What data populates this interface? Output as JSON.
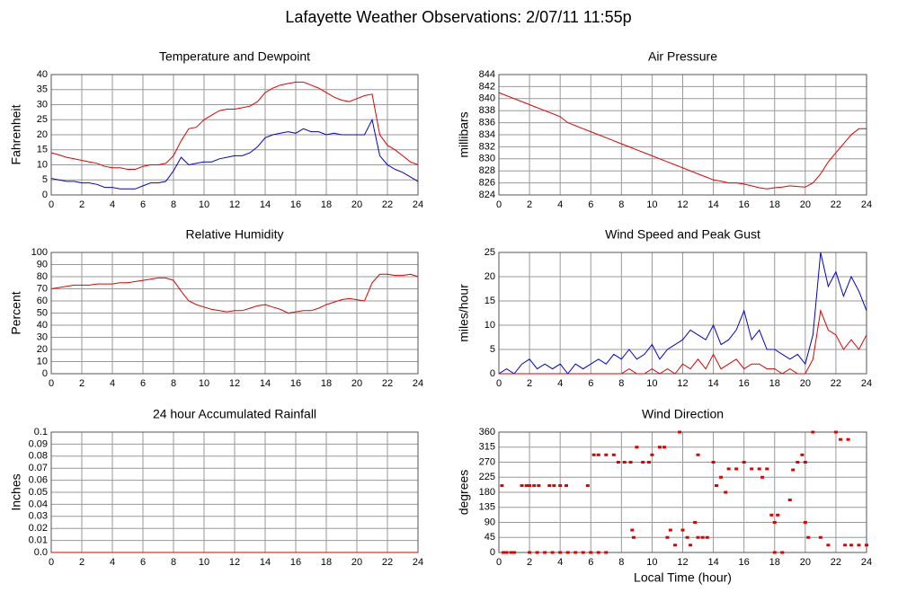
{
  "title": "Lafayette Weather Observations: 2/07/11 11:55p",
  "chart_data": [
    {
      "type": "line",
      "title": "Temperature and Dewpoint",
      "ylabel": "Fahrenheit",
      "x": [
        0,
        0.5,
        1,
        1.5,
        2,
        2.5,
        3,
        3.5,
        4,
        4.5,
        5,
        5.5,
        6,
        6.5,
        7,
        7.5,
        8,
        8.5,
        9,
        9.5,
        10,
        10.5,
        11,
        11.5,
        12,
        12.5,
        13,
        13.5,
        14,
        14.5,
        15,
        15.5,
        16,
        16.5,
        17,
        17.5,
        18,
        18.5,
        19,
        19.5,
        20,
        20.5,
        21,
        21.5,
        22,
        22.5,
        23,
        23.5,
        24
      ],
      "series": [
        {
          "color": "#e00000",
          "values": [
            14,
            13.3,
            12.5,
            12,
            11.5,
            11,
            10.5,
            9.5,
            9,
            9,
            8.5,
            8.5,
            9.5,
            10,
            10,
            10.5,
            13,
            18,
            22,
            22.5,
            25,
            26.5,
            28,
            28.5,
            28.5,
            29,
            29.5,
            31,
            34,
            35.5,
            36.5,
            37,
            37.5,
            37.5,
            36.5,
            35.5,
            34,
            32.5,
            31.5,
            31,
            32,
            33,
            33.5,
            20,
            16.5,
            15,
            13,
            11,
            10
          ]
        },
        {
          "color": "#0000d0",
          "values": [
            5.5,
            5,
            4.5,
            4.5,
            4,
            4,
            3.5,
            2.5,
            2.5,
            2,
            2,
            2,
            3,
            4,
            4,
            4.5,
            8,
            12.5,
            10,
            10.5,
            11,
            11,
            12,
            12.5,
            13,
            13,
            14,
            16,
            19,
            20,
            20.5,
            21,
            20.5,
            22,
            21,
            21,
            20,
            20.5,
            20,
            20,
            20,
            20,
            25,
            13,
            10,
            8.5,
            7.5,
            6,
            4.5
          ]
        }
      ],
      "xlim": [
        0,
        24
      ],
      "xticks": [
        0,
        2,
        4,
        6,
        8,
        10,
        12,
        14,
        16,
        18,
        20,
        22,
        24
      ],
      "ylim": [
        0,
        40
      ],
      "yticks": [
        0,
        5,
        10,
        15,
        20,
        25,
        30,
        35,
        40
      ],
      "grid": true
    },
    {
      "type": "line",
      "title": "Air Pressure",
      "ylabel": "millibars",
      "x": [
        0,
        0.5,
        1,
        1.5,
        2,
        2.5,
        3,
        3.5,
        4,
        4.5,
        5,
        5.5,
        6,
        6.5,
        7,
        7.5,
        8,
        8.5,
        9,
        9.5,
        10,
        10.5,
        11,
        11.5,
        12,
        12.5,
        13,
        13.5,
        14,
        14.5,
        15,
        15.5,
        16,
        16.5,
        17,
        17.5,
        18,
        18.5,
        19,
        19.5,
        20,
        20.5,
        21,
        21.5,
        22,
        22.5,
        23,
        23.5,
        24
      ],
      "series": [
        {
          "color": "#e00000",
          "values": [
            841,
            840.5,
            840,
            839.5,
            839,
            838.5,
            838,
            837.5,
            837,
            836,
            835.5,
            835,
            834.5,
            834,
            833.5,
            833,
            832.5,
            832,
            831.5,
            831,
            830.5,
            830,
            829.5,
            829,
            828.5,
            828,
            827.5,
            827,
            826.5,
            826.3,
            826,
            826,
            825.8,
            825.5,
            825.2,
            825,
            825.2,
            825.3,
            825.5,
            825.4,
            825.3,
            826,
            827.5,
            829.5,
            831,
            832.5,
            834,
            835,
            835
          ]
        }
      ],
      "xlim": [
        0,
        24
      ],
      "xticks": [
        0,
        2,
        4,
        6,
        8,
        10,
        12,
        14,
        16,
        18,
        20,
        22,
        24
      ],
      "ylim": [
        824,
        844
      ],
      "yticks": [
        824,
        826,
        828,
        830,
        832,
        834,
        836,
        838,
        840,
        842,
        844
      ],
      "grid": true
    },
    {
      "type": "line",
      "title": "Relative Humidity",
      "ylabel": "Percent",
      "x": [
        0,
        0.5,
        1,
        1.5,
        2,
        2.5,
        3,
        3.5,
        4,
        4.5,
        5,
        5.5,
        6,
        6.5,
        7,
        7.5,
        8,
        8.5,
        9,
        9.5,
        10,
        10.5,
        11,
        11.5,
        12,
        12.5,
        13,
        13.5,
        14,
        14.5,
        15,
        15.5,
        16,
        16.5,
        17,
        17.5,
        18,
        18.5,
        19,
        19.5,
        20,
        20.5,
        21,
        21.5,
        22,
        22.5,
        23,
        23.5,
        24
      ],
      "series": [
        {
          "color": "#e00000",
          "values": [
            70,
            71,
            72,
            73,
            73,
            73,
            74,
            74,
            74,
            75,
            75,
            76,
            77,
            78,
            79,
            79,
            77,
            68,
            60,
            57,
            55,
            53,
            52,
            51,
            52,
            52,
            54,
            56,
            57,
            55,
            53,
            50,
            51,
            52,
            52,
            54,
            57,
            59,
            61,
            62,
            61,
            60,
            75,
            82,
            82,
            81,
            81,
            82,
            80
          ]
        }
      ],
      "xlim": [
        0,
        24
      ],
      "xticks": [
        0,
        2,
        4,
        6,
        8,
        10,
        12,
        14,
        16,
        18,
        20,
        22,
        24
      ],
      "ylim": [
        0,
        100
      ],
      "yticks": [
        0,
        10,
        20,
        30,
        40,
        50,
        60,
        70,
        80,
        90,
        100
      ],
      "grid": true
    },
    {
      "type": "line",
      "title": "Wind Speed and Peak Gust",
      "ylabel": "miles/hour",
      "x": [
        0,
        0.5,
        1,
        1.5,
        2,
        2.5,
        3,
        3.5,
        4,
        4.5,
        5,
        5.5,
        6,
        6.5,
        7,
        7.5,
        8,
        8.5,
        9,
        9.5,
        10,
        10.5,
        11,
        11.5,
        12,
        12.5,
        13,
        13.5,
        14,
        14.5,
        15,
        15.5,
        16,
        16.5,
        17,
        17.5,
        18,
        18.5,
        19,
        19.5,
        20,
        20.5,
        21,
        21.5,
        22,
        22.5,
        23,
        23.5,
        24
      ],
      "series": [
        {
          "color": "#0000d0",
          "values": [
            0,
            1,
            0,
            2,
            3,
            1,
            2,
            1,
            2,
            0,
            2,
            1,
            2,
            3,
            2,
            4,
            3,
            5,
            3,
            4,
            6,
            3,
            5,
            6,
            7,
            9,
            8,
            7,
            10,
            6,
            7,
            9,
            13,
            7,
            9,
            5,
            5,
            4,
            3,
            4,
            2,
            8,
            25,
            18,
            21,
            16,
            20,
            17,
            13
          ]
        },
        {
          "color": "#e00000",
          "values": [
            0,
            0,
            0,
            0,
            0,
            0,
            0,
            0,
            0,
            0,
            0,
            0,
            0,
            0,
            0,
            0,
            0,
            1,
            0,
            0,
            1,
            0,
            1,
            0,
            2,
            1,
            3,
            1,
            4,
            1,
            2,
            3,
            1,
            2,
            2,
            1,
            1,
            0,
            1,
            0,
            0,
            3,
            13,
            9,
            8,
            5,
            7,
            5,
            8
          ]
        }
      ],
      "xlim": [
        0,
        24
      ],
      "xticks": [
        0,
        2,
        4,
        6,
        8,
        10,
        12,
        14,
        16,
        18,
        20,
        22,
        24
      ],
      "ylim": [
        0,
        25
      ],
      "yticks": [
        0,
        5,
        10,
        15,
        20,
        25
      ],
      "grid": true
    },
    {
      "type": "line",
      "title": "24 hour Accumulated Rainfall",
      "ylabel": "Inches",
      "x": [
        0,
        24
      ],
      "series": [
        {
          "color": "#e00000",
          "values": [
            0,
            0
          ]
        }
      ],
      "xlim": [
        0,
        24
      ],
      "xticks": [
        0,
        2,
        4,
        6,
        8,
        10,
        12,
        14,
        16,
        18,
        20,
        22,
        24
      ],
      "ylim": [
        0,
        0.1
      ],
      "yticks": [
        {
          "value": 0,
          "label": "0.0"
        },
        0.01,
        0.02,
        0.03,
        0.04,
        0.05,
        0.06,
        0.07,
        0.08,
        0.09,
        0.1
      ],
      "grid": true
    },
    {
      "type": "scatter",
      "title": "Wind Direction",
      "ylabel": "degrees",
      "xlabel": "Local Time (hour)",
      "x": [
        0.2,
        0.3,
        0.5,
        0.8,
        1,
        1.5,
        1.8,
        2,
        2.3,
        2.6,
        2,
        2.5,
        3,
        3.5,
        3.3,
        3.6,
        4,
        4.4,
        4,
        4.5,
        5,
        5.5,
        5.8,
        6.2,
        6.5,
        6,
        6.5,
        7,
        7,
        7.5,
        7.8,
        8.2,
        8.6,
        8.7,
        8.8,
        9,
        9.4,
        9.8,
        10,
        10.5,
        10.8,
        11,
        11.2,
        11.5,
        11.8,
        12,
        12.3,
        12.5,
        12.8,
        13,
        13,
        13.3,
        13.6,
        14,
        14.2,
        14.5,
        14.8,
        15,
        15.5,
        16,
        16.5,
        17,
        17.2,
        17.5,
        17.8,
        18,
        18,
        18.2,
        18.5,
        19,
        19.2,
        19.5,
        19.8,
        20,
        20,
        20.2,
        20.5,
        21,
        21.5,
        22,
        22.3,
        22.6,
        22.8,
        23,
        23.5,
        24
      ],
      "series": [
        {
          "color": "#e00000",
          "values": [
            200,
            0,
            0,
            0,
            0,
            200,
            200,
            200,
            200,
            200,
            0,
            0,
            0,
            0,
            200,
            200,
            200,
            200,
            0,
            0,
            0,
            0,
            200,
            292,
            292,
            0,
            0,
            0,
            292,
            292,
            270,
            270,
            270,
            67,
            45,
            315,
            270,
            270,
            292,
            315,
            315,
            45,
            67,
            22,
            360,
            67,
            45,
            22,
            90,
            45,
            292,
            45,
            45,
            270,
            200,
            225,
            180,
            250,
            250,
            270,
            250,
            250,
            225,
            250,
            112,
            0,
            90,
            112,
            0,
            157,
            247,
            270,
            292,
            270,
            90,
            45,
            360,
            45,
            22,
            360,
            338,
            22,
            338,
            22,
            22,
            22
          ]
        }
      ],
      "xlim": [
        0,
        24
      ],
      "xticks": [
        0,
        2,
        4,
        6,
        8,
        10,
        12,
        14,
        16,
        18,
        20,
        22,
        24
      ],
      "ylim": [
        0,
        360
      ],
      "yticks": [
        0,
        45,
        90,
        135,
        180,
        225,
        270,
        315,
        360
      ],
      "grid": true
    }
  ]
}
